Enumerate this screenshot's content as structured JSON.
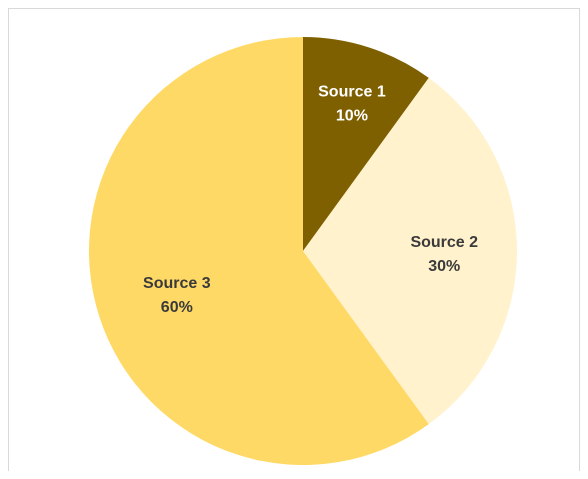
{
  "chart_data": {
    "type": "pie",
    "title": "",
    "categories": [
      "Source 1",
      "Source 2",
      "Source 3"
    ],
    "values": [
      10,
      30,
      60
    ],
    "data_labels": [
      "10%",
      "30%",
      "60%"
    ],
    "colors": [
      "#7f6000",
      "#fff2cc",
      "#ffd966"
    ],
    "label_colors": [
      "#ffffff",
      "#3a3a3a",
      "#3a3a3a"
    ],
    "legend": "none",
    "start_angle": "12 o'clock",
    "direction": "clockwise"
  }
}
